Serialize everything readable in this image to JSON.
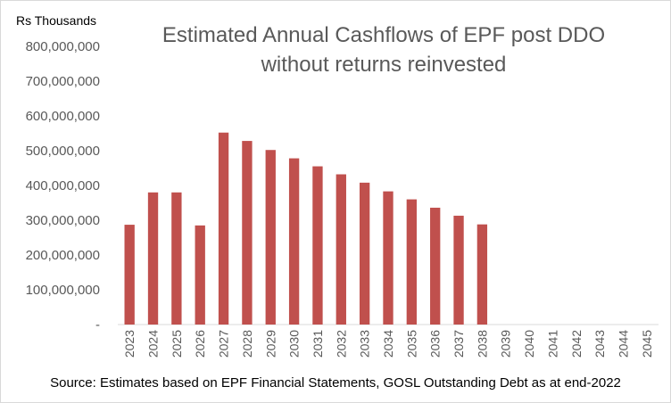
{
  "chart_data": {
    "type": "bar",
    "title_lines": [
      "Estimated Annual Cashflows of EPF post DDO",
      "without returns reinvested"
    ],
    "ylabel": "Rs Thousands",
    "source": "Source: Estimates based on EPF Financial Statements, GOSL Outstanding Debt as at end-2022",
    "categories": [
      "2023",
      "2024",
      "2025",
      "2026",
      "2027",
      "2028",
      "2029",
      "2030",
      "2031",
      "2032",
      "2033",
      "2034",
      "2035",
      "2036",
      "2037",
      "2038",
      "2039",
      "2040",
      "2041",
      "2042",
      "2043",
      "2044",
      "2045"
    ],
    "values": [
      287000000,
      380000000,
      380000000,
      285000000,
      552000000,
      528000000,
      502000000,
      478000000,
      455000000,
      432000000,
      408000000,
      383000000,
      360000000,
      336000000,
      313000000,
      288000000,
      0,
      0,
      0,
      0,
      0,
      0,
      0
    ],
    "ylim": [
      0,
      800000000
    ],
    "yticks": [
      0,
      100000000,
      200000000,
      300000000,
      400000000,
      500000000,
      600000000,
      700000000,
      800000000
    ],
    "ytick_labels": [
      "-",
      "100,000,000",
      "200,000,000",
      "300,000,000",
      "400,000,000",
      "500,000,000",
      "600,000,000",
      "700,000,000",
      "800,000,000"
    ],
    "grid": false,
    "legend": "none",
    "bar_color": "#c0504d"
  }
}
